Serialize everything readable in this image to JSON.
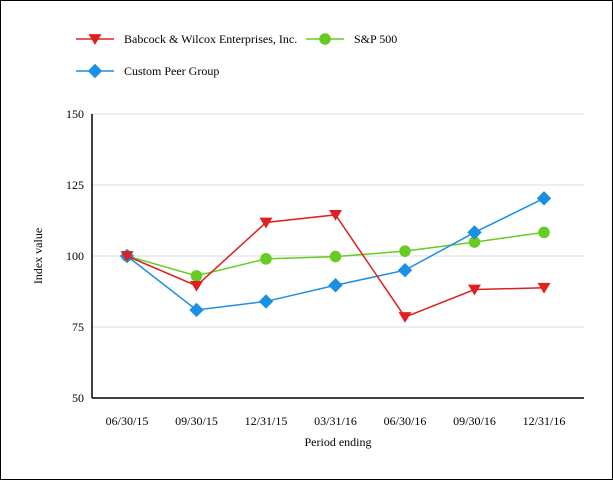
{
  "chart_data": {
    "type": "line",
    "title": "",
    "xlabel": "Period ending",
    "ylabel": "Index value",
    "categories": [
      "06/30/15",
      "09/30/15",
      "12/31/15",
      "03/31/16",
      "06/30/16",
      "09/30/16",
      "12/31/16"
    ],
    "ylim": [
      50,
      150
    ],
    "yticks": [
      50,
      75,
      100,
      125,
      150
    ],
    "grid": "horizontal",
    "legend_position": "top-left",
    "series": [
      {
        "name": "Babcock & Wilcox Enterprises, Inc.",
        "color": "#e02020",
        "marker": "triangle-down",
        "values": [
          100,
          89.5,
          111.8,
          114.5,
          78.5,
          88.2,
          88.8
        ]
      },
      {
        "name": "S&P 500",
        "color": "#66cc22",
        "marker": "circle",
        "values": [
          100,
          93,
          99,
          99.8,
          101.7,
          104.9,
          108.3
        ]
      },
      {
        "name": "Custom Peer Group",
        "color": "#1b8fe6",
        "marker": "diamond",
        "values": [
          100,
          81,
          84,
          89.7,
          95,
          108.3,
          120.3
        ]
      }
    ]
  }
}
